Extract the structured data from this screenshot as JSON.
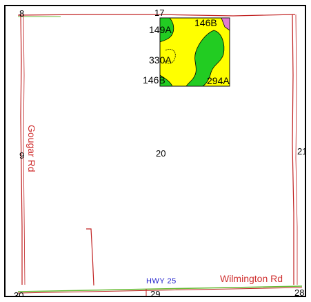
{
  "sections": {
    "nw": "8",
    "n": "17",
    "w": "9",
    "center": "20",
    "e": "21",
    "sw": "30",
    "s": "29",
    "se": "28"
  },
  "soil_units": [
    "149A",
    "146B",
    "330A",
    "146B",
    "294A"
  ],
  "roads": {
    "gougar": "Gougar Rd",
    "wilmington": "Wilmington Rd",
    "hwy": "HWY 25"
  },
  "colors": {
    "soil_yellow": "#ffff00",
    "soil_green": "#22cc22",
    "soil_pink": "#e07ad0",
    "road_red": "#c02020",
    "road_green": "#66bb33",
    "hwy_blue": "#2222cc"
  }
}
